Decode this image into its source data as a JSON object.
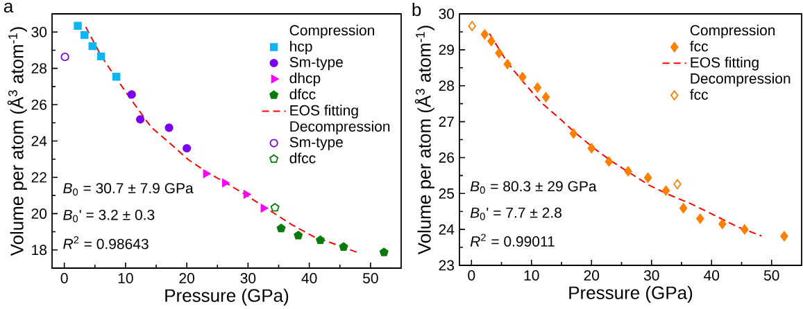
{
  "chart_data": [
    {
      "type": "scatter",
      "title": "a",
      "xlabel": "Pressure (GPa)",
      "ylabel": "Volume per atom (Å$^{3}$ atom$^{-1}$)",
      "xlim": [
        -2,
        55
      ],
      "ylim": [
        17,
        31
      ],
      "xticks": [
        0,
        10,
        20,
        30,
        40,
        50
      ],
      "yticks": [
        18,
        20,
        22,
        24,
        26,
        28,
        30
      ],
      "legend": "top right",
      "legend_title": "Compression",
      "annotations": [
        "Decompression",
        "*B*$_{0}$ = 30.7 ± 7.9 GPa",
        "*B*$_{0}$' = 3.2 ± 0.3",
        "*R*$^{2}$ = 0.98643"
      ],
      "series": [
        {
          "name": "hcp",
          "color": "#10b4f0",
          "marker": "square",
          "x": [
            2.2,
            3.3,
            4.6,
            6.0,
            8.5
          ],
          "values": [
            30.34,
            29.83,
            29.22,
            28.66,
            27.54
          ]
        },
        {
          "name": "Sm-type",
          "color": "#7a00f0",
          "marker": "circle",
          "x": [
            11.0,
            12.4,
            17.1,
            20.0
          ],
          "values": [
            26.56,
            25.19,
            24.73,
            23.6
          ]
        },
        {
          "name": "dhcp",
          "color": "#ff00ff",
          "marker": "triangle",
          "x": [
            23.1,
            26.2,
            29.7,
            32.5
          ],
          "values": [
            22.2,
            21.69,
            21.06,
            20.3
          ]
        },
        {
          "name": "dfcc",
          "color": "#0a7a0a",
          "x": [
            35.4,
            38.2,
            41.8,
            45.6,
            52.2
          ],
          "values": [
            19.19,
            18.8,
            18.54,
            18.17,
            17.87
          ]
        },
        {
          "name": "EOS fitting",
          "type": "line",
          "color": "#ff0000",
          "line_style": "dashed",
          "marker": "none",
          "x": [
            3.5,
            6.0,
            8.3,
            10.8,
            14.2,
            17.3,
            20.3,
            23.4,
            26.4,
            29.5,
            33.3,
            37.1,
            40.9,
            44.7,
            47.8
          ],
          "values": [
            30.28,
            28.69,
            27.54,
            26.33,
            24.75,
            23.86,
            22.96,
            22.26,
            21.69,
            21.06,
            20.23,
            19.4,
            18.7,
            18.26,
            17.87
          ]
        },
        {
          "name": "Sm-type",
          "color": "#7a00f0",
          "marker": "circle",
          "x": [
            0.1
          ],
          "values": [
            28.63
          ]
        },
        {
          "name": "dfcc",
          "color": "#0a7a0a",
          "x": [
            34.4
          ],
          "values": [
            20.33
          ]
        }
      ]
    },
    {
      "type": "scatter",
      "title": "b",
      "xlabel": "Pressure (GPa)",
      "ylabel": "Volume per atom (Å$^{3}$ atom$^{-1}$)",
      "xlim": [
        -2,
        55
      ],
      "ylim": [
        23,
        30
      ],
      "xticks": [
        0,
        10,
        20,
        30,
        40,
        50
      ],
      "yticks": [
        23,
        24,
        25,
        26,
        27,
        28,
        29,
        30
      ],
      "legend": "top right",
      "legend_title": "Compression",
      "annotations": [
        "Decompression",
        "*B*$_{0}$ = 80.3 ± 29 GPa",
        "*B*$_{0}$' = 7.7 ± 2.8",
        "*R*$^{2}$ = 0.99011"
      ],
      "series": [
        {
          "name": "fcc",
          "color": "#ff8000",
          "marker": "diamond",
          "x": [
            2.2,
            3.3,
            4.6,
            6.0,
            8.5,
            11.0,
            12.4,
            17.0,
            20.0,
            22.9,
            26.1,
            29.4,
            32.4,
            35.3,
            38.1,
            41.8,
            45.5,
            52.1
          ],
          "values": [
            29.43,
            29.24,
            28.91,
            28.6,
            28.24,
            27.95,
            27.68,
            26.67,
            26.26,
            25.89,
            25.62,
            25.44,
            25.08,
            24.59,
            24.3,
            24.15,
            24.0,
            23.81
          ]
        },
        {
          "name": "EOS fitting",
          "type": "line",
          "color": "#ff0000",
          "line_style": "dashed",
          "marker": "none",
          "x": [
            3.0,
            6.0,
            8.5,
            11.5,
            15.0,
            17.3,
            20.4,
            23.5,
            26.5,
            29.6,
            32.7,
            36.5,
            40.4,
            44.2,
            48.3
          ],
          "values": [
            29.45,
            28.64,
            28.13,
            27.55,
            27.04,
            26.69,
            26.26,
            25.88,
            25.56,
            25.23,
            24.98,
            24.72,
            24.4,
            24.08,
            23.82
          ]
        },
        {
          "name": "fcc",
          "color": "#ff8000",
          "marker": "diamond",
          "x": [
            0.1,
            34.3
          ],
          "values": [
            29.66,
            25.26
          ]
        }
      ]
    }
  ]
}
